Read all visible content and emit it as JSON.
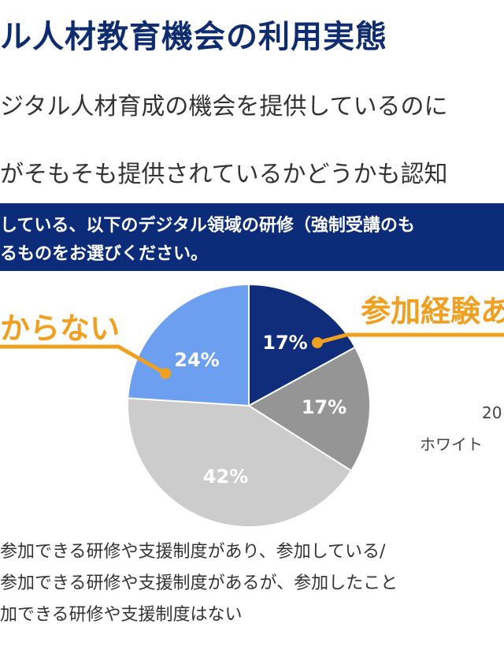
{
  "page": {
    "title": "ル人材教育機会の利用実態",
    "line1": "ジタル人材育成の機会を提供しているのに",
    "line2": "がそもそも提供されているかどうかも認知",
    "banner_line1": "している、以下のデジタル領域の研修（強制受講のも",
    "banner_line2": "るものをお選びください。",
    "callout_left": "からない",
    "callout_right": "参加経験あ",
    "source_line1": "20",
    "source_line2": "ホワイト"
  },
  "legend": [
    "参加できる研修や支援制度があり、参加している/",
    "参加できる研修や支援制度があるが、参加したこと",
    "加できる研修や支援制度はない"
  ],
  "colors": {
    "accent_orange": "#f0a020",
    "navy": "#0c2b78"
  },
  "chart_data": {
    "type": "pie",
    "start_angle_deg": 0,
    "direction": "clockwise",
    "slices": [
      {
        "label": "17%",
        "value": 17,
        "color": "#0f2d7a"
      },
      {
        "label": "17%",
        "value": 17,
        "color": "#959595"
      },
      {
        "label": "42%",
        "value": 42,
        "color": "#cccccc"
      },
      {
        "label": "24%",
        "value": 24,
        "color": "#6d9ff0"
      }
    ]
  }
}
